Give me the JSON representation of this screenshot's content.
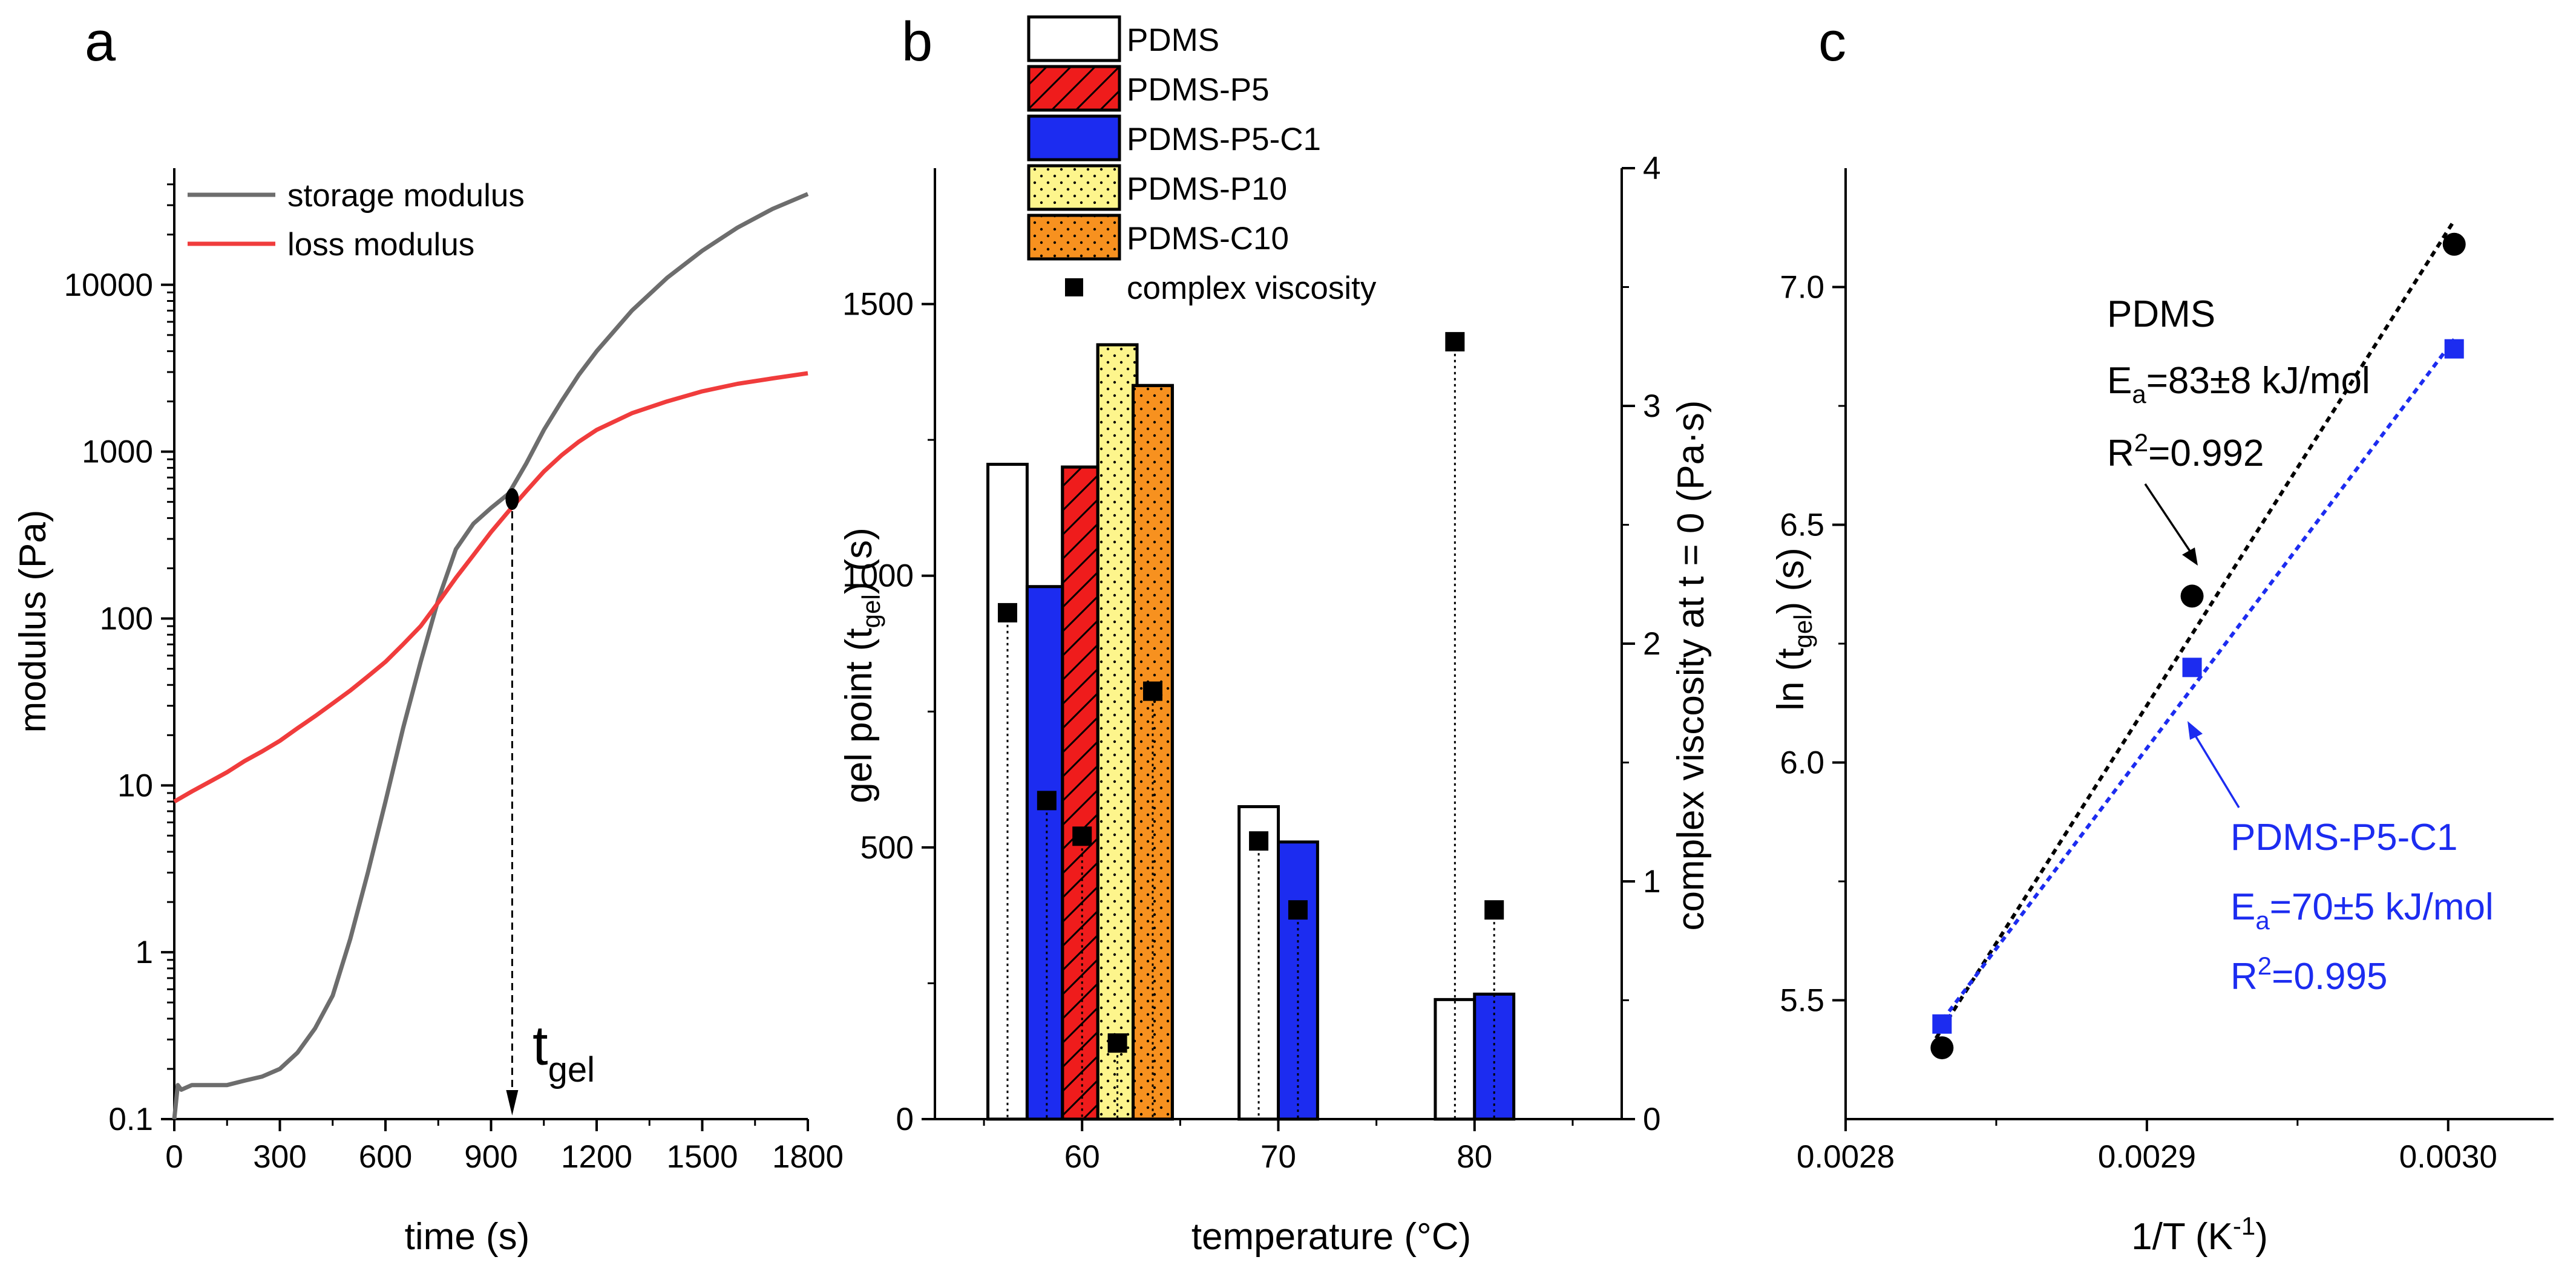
{
  "colors": {
    "storage": "#6d6d6d",
    "loss": "#f03c3c",
    "PDMS": "#ffffff",
    "PDMS-P5": "#ef1c1c",
    "PDMS-P5-C1": "#1c2cf0",
    "PDMS-P10": "#fdf58c",
    "PDMS-C10": "#f7911f",
    "marker_black": "#000000",
    "blue_text": "#1c2cf0",
    "fit_blue": "#1c2cf0"
  },
  "chart_data": [
    {
      "id": "a",
      "panel_label": "a",
      "type": "line",
      "xlabel": "time (s)",
      "ylabel": "modulus (Pa)",
      "xlim": [
        0,
        1800
      ],
      "ylim": [
        0.1,
        50000
      ],
      "yscale": "log",
      "x_ticks": [
        0,
        300,
        600,
        900,
        1200,
        1500,
        1800
      ],
      "x_tick_labels": [
        "0",
        "300",
        "600",
        "900",
        "1200",
        "1500",
        "1800"
      ],
      "y_ticks": [
        0.1,
        1,
        10,
        100,
        1000,
        10000
      ],
      "y_tick_labels": [
        "0.1",
        "1",
        "10",
        "100",
        "1000",
        "10000"
      ],
      "legend": [
        {
          "label": "storage modulus",
          "color_key": "storage"
        },
        {
          "label": "loss modulus",
          "color_key": "loss"
        }
      ],
      "series": [
        {
          "name": "storage modulus",
          "color_key": "storage",
          "x": [
            0,
            10,
            20,
            50,
            100,
            150,
            200,
            250,
            300,
            350,
            400,
            450,
            500,
            550,
            600,
            650,
            700,
            750,
            800,
            850,
            900,
            950,
            1000,
            1050,
            1100,
            1150,
            1200,
            1300,
            1400,
            1500,
            1600,
            1700,
            1800
          ],
          "y": [
            0.1,
            0.16,
            0.15,
            0.16,
            0.16,
            0.16,
            0.17,
            0.18,
            0.2,
            0.25,
            0.35,
            0.55,
            1.2,
            3.0,
            8,
            22,
            55,
            130,
            260,
            370,
            460,
            560,
            850,
            1350,
            2000,
            2900,
            4000,
            7000,
            11000,
            16000,
            22000,
            28500,
            35000
          ]
        },
        {
          "name": "loss modulus",
          "color_key": "loss",
          "x": [
            0,
            50,
            100,
            150,
            200,
            250,
            300,
            350,
            400,
            450,
            500,
            550,
            600,
            650,
            700,
            750,
            800,
            850,
            900,
            950,
            1000,
            1050,
            1100,
            1150,
            1200,
            1300,
            1400,
            1500,
            1600,
            1700,
            1800
          ],
          "y": [
            8,
            9.2,
            10.5,
            12,
            14,
            16,
            18.5,
            22,
            26,
            31,
            37,
            45,
            55,
            70,
            90,
            125,
            175,
            240,
            330,
            440,
            580,
            760,
            950,
            1150,
            1350,
            1700,
            2000,
            2300,
            2550,
            2750,
            2950
          ]
        }
      ],
      "gel_point": {
        "x": 960,
        "y": 520
      },
      "annotation": {
        "text": "t",
        "sub": "gel"
      }
    },
    {
      "id": "b",
      "panel_label": "b",
      "type": "bar",
      "xlabel": "temperature (°C)",
      "ylabel_left_main": "gel point (t",
      "ylabel_left_sub": "gel",
      "ylabel_left_end": ") (s)",
      "ylabel_right": "complex viscosity at t = 0 (Pa·s)",
      "xlim": [
        52.5,
        87.5
      ],
      "ylim_left": [
        0,
        1750
      ],
      "ylim_right": [
        0,
        4
      ],
      "x_ticks": [
        60,
        70,
        80
      ],
      "x_tick_labels": [
        "60",
        "70",
        "80"
      ],
      "y_left_ticks": [
        0,
        500,
        1000,
        1500
      ],
      "y_left_tick_labels": [
        "0",
        "500",
        "1000",
        "1500"
      ],
      "y_right_ticks": [
        0,
        1,
        2,
        3,
        4
      ],
      "y_right_tick_labels": [
        "0",
        "1",
        "2",
        "3",
        "4"
      ],
      "legend": [
        {
          "label": "PDMS",
          "color_key": "PDMS",
          "pattern": "none"
        },
        {
          "label": "PDMS-P5",
          "color_key": "PDMS-P5",
          "pattern": "hatch"
        },
        {
          "label": "PDMS-P5-C1",
          "color_key": "PDMS-P5-C1",
          "pattern": "none"
        },
        {
          "label": "PDMS-P10",
          "color_key": "PDMS-P10",
          "pattern": "dots"
        },
        {
          "label": "PDMS-C10",
          "color_key": "PDMS-C10",
          "pattern": "dots"
        },
        {
          "label": "complex viscosity",
          "color_key": "marker_black",
          "pattern": "marker"
        }
      ],
      "bars": [
        {
          "series": "PDMS",
          "temperature": 60,
          "center": 56.2,
          "width": 2,
          "gel_point_s": 1205,
          "viscosity_pa_s": 2.13
        },
        {
          "series": "PDMS-P5-C1",
          "temperature": 60,
          "center": 58.2,
          "width": 2,
          "gel_point_s": 980,
          "viscosity_pa_s": 1.34
        },
        {
          "series": "PDMS-P5",
          "temperature": 60,
          "center": 60.0,
          "width": 2,
          "gel_point_s": 1200,
          "viscosity_pa_s": 1.19
        },
        {
          "series": "PDMS-P10",
          "temperature": 60,
          "center": 61.8,
          "width": 2,
          "gel_point_s": 1425,
          "viscosity_pa_s": 0.32
        },
        {
          "series": "PDMS-C10",
          "temperature": 60,
          "center": 63.6,
          "width": 2,
          "gel_point_s": 1350,
          "viscosity_pa_s": 1.8
        },
        {
          "series": "PDMS",
          "temperature": 70,
          "center": 69.0,
          "width": 2,
          "gel_point_s": 575,
          "viscosity_pa_s": 1.17
        },
        {
          "series": "PDMS-P5-C1",
          "temperature": 70,
          "center": 71.0,
          "width": 2,
          "gel_point_s": 510,
          "viscosity_pa_s": 0.88
        },
        {
          "series": "PDMS",
          "temperature": 80,
          "center": 79.0,
          "width": 2,
          "gel_point_s": 220,
          "viscosity_pa_s": 3.27
        },
        {
          "series": "PDMS-P5-C1",
          "temperature": 80,
          "center": 81.0,
          "width": 2,
          "gel_point_s": 230,
          "viscosity_pa_s": 0.88
        }
      ]
    },
    {
      "id": "c",
      "panel_label": "c",
      "type": "scatter",
      "xlabel_main": "1/T (K",
      "xlabel_sup": "-1",
      "xlabel_end": ")",
      "ylabel_main": "ln (t",
      "ylabel_sub": "gel",
      "ylabel_end": ") (s)",
      "xlim": [
        0.0028,
        0.003035
      ],
      "ylim": [
        5.25,
        7.25
      ],
      "x_ticks": [
        0.0028,
        0.0029,
        0.003
      ],
      "x_tick_labels": [
        "0.0028",
        "0.0029",
        "0.0030"
      ],
      "y_ticks": [
        5.5,
        6.0,
        6.5,
        7.0
      ],
      "y_tick_labels": [
        "5.5",
        "6.0",
        "6.5",
        "7.0"
      ],
      "series": [
        {
          "name": "PDMS",
          "color_key": "marker_black",
          "marker": "circle",
          "x": [
            0.002832,
            0.002915,
            0.003002
          ],
          "y": [
            5.4,
            6.35,
            7.09
          ],
          "fit": {
            "x": [
              0.00283,
              0.003002
            ],
            "y": [
              5.42,
              7.14
            ]
          },
          "label": "PDMS",
          "ea_prefix": "E",
          "ea_sub": "a",
          "ea_value": "=83±8 kJ/mol",
          "r2_prefix": "R",
          "r2_sup": "2",
          "r2_value": "=0.992"
        },
        {
          "name": "PDMS-P5-C1",
          "color_key": "fit_blue",
          "marker": "square",
          "x": [
            0.002832,
            0.002915,
            0.003002
          ],
          "y": [
            5.45,
            6.2,
            6.87
          ],
          "fit": {
            "x": [
              0.00283,
              0.003002
            ],
            "y": [
              5.44,
              6.89
            ]
          },
          "label": "PDMS-P5-C1",
          "ea_prefix": "E",
          "ea_sub": "a",
          "ea_value": "=70±5 kJ/mol",
          "r2_prefix": "R",
          "r2_sup": "2",
          "r2_value": "=0.995"
        }
      ]
    }
  ]
}
